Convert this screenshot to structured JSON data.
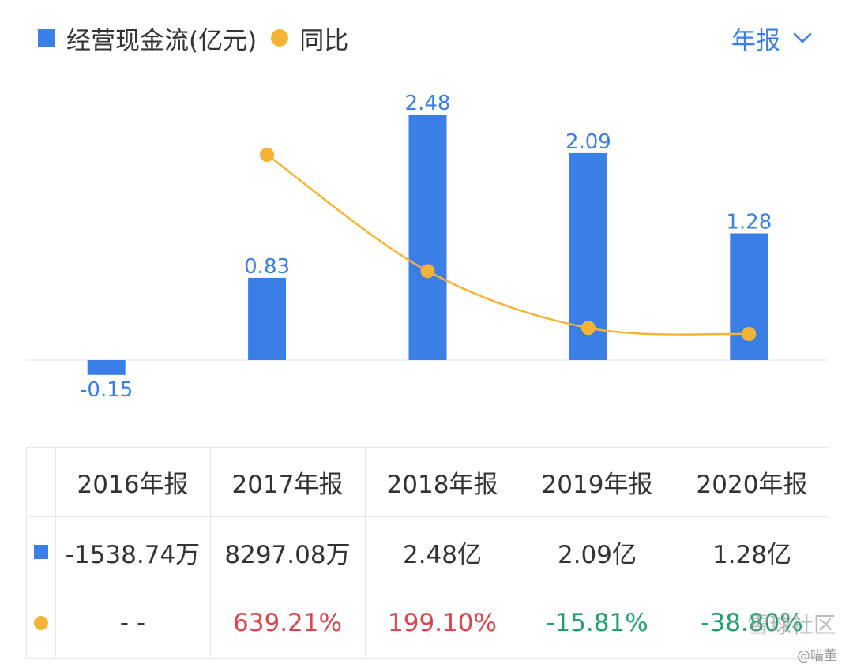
{
  "legend": {
    "bar_label": "经营现金流(亿元)",
    "line_label": "同比"
  },
  "period_selector": {
    "label": "年报"
  },
  "chart_data": {
    "type": "bar",
    "categories": [
      "2016年报",
      "2017年报",
      "2018年报",
      "2019年报",
      "2020年报"
    ],
    "series": [
      {
        "name": "经营现金流(亿元)",
        "type": "bar",
        "values": [
          -0.15,
          0.83,
          2.48,
          2.09,
          1.28
        ],
        "data_labels": [
          "-0.15",
          "0.83",
          "2.48",
          "2.09",
          "1.28"
        ]
      },
      {
        "name": "同比",
        "type": "line",
        "values": [
          null,
          639.21,
          199.1,
          -15.81,
          -38.8
        ]
      }
    ],
    "colors": {
      "bar": "#3a7fe6",
      "line": "#f5b335"
    }
  },
  "table": {
    "headers": [
      "2016年报",
      "2017年报",
      "2018年报",
      "2019年报",
      "2020年报"
    ],
    "cash_flow": [
      "-1538.74万",
      "8297.08万",
      "2.48亿",
      "2.09亿",
      "1.28亿"
    ],
    "yoy": [
      "- -",
      "639.21%",
      "199.10%",
      "-15.81%",
      "-38.80%"
    ]
  },
  "watermark": {
    "text": "雪球社区",
    "author": "@喵董"
  }
}
